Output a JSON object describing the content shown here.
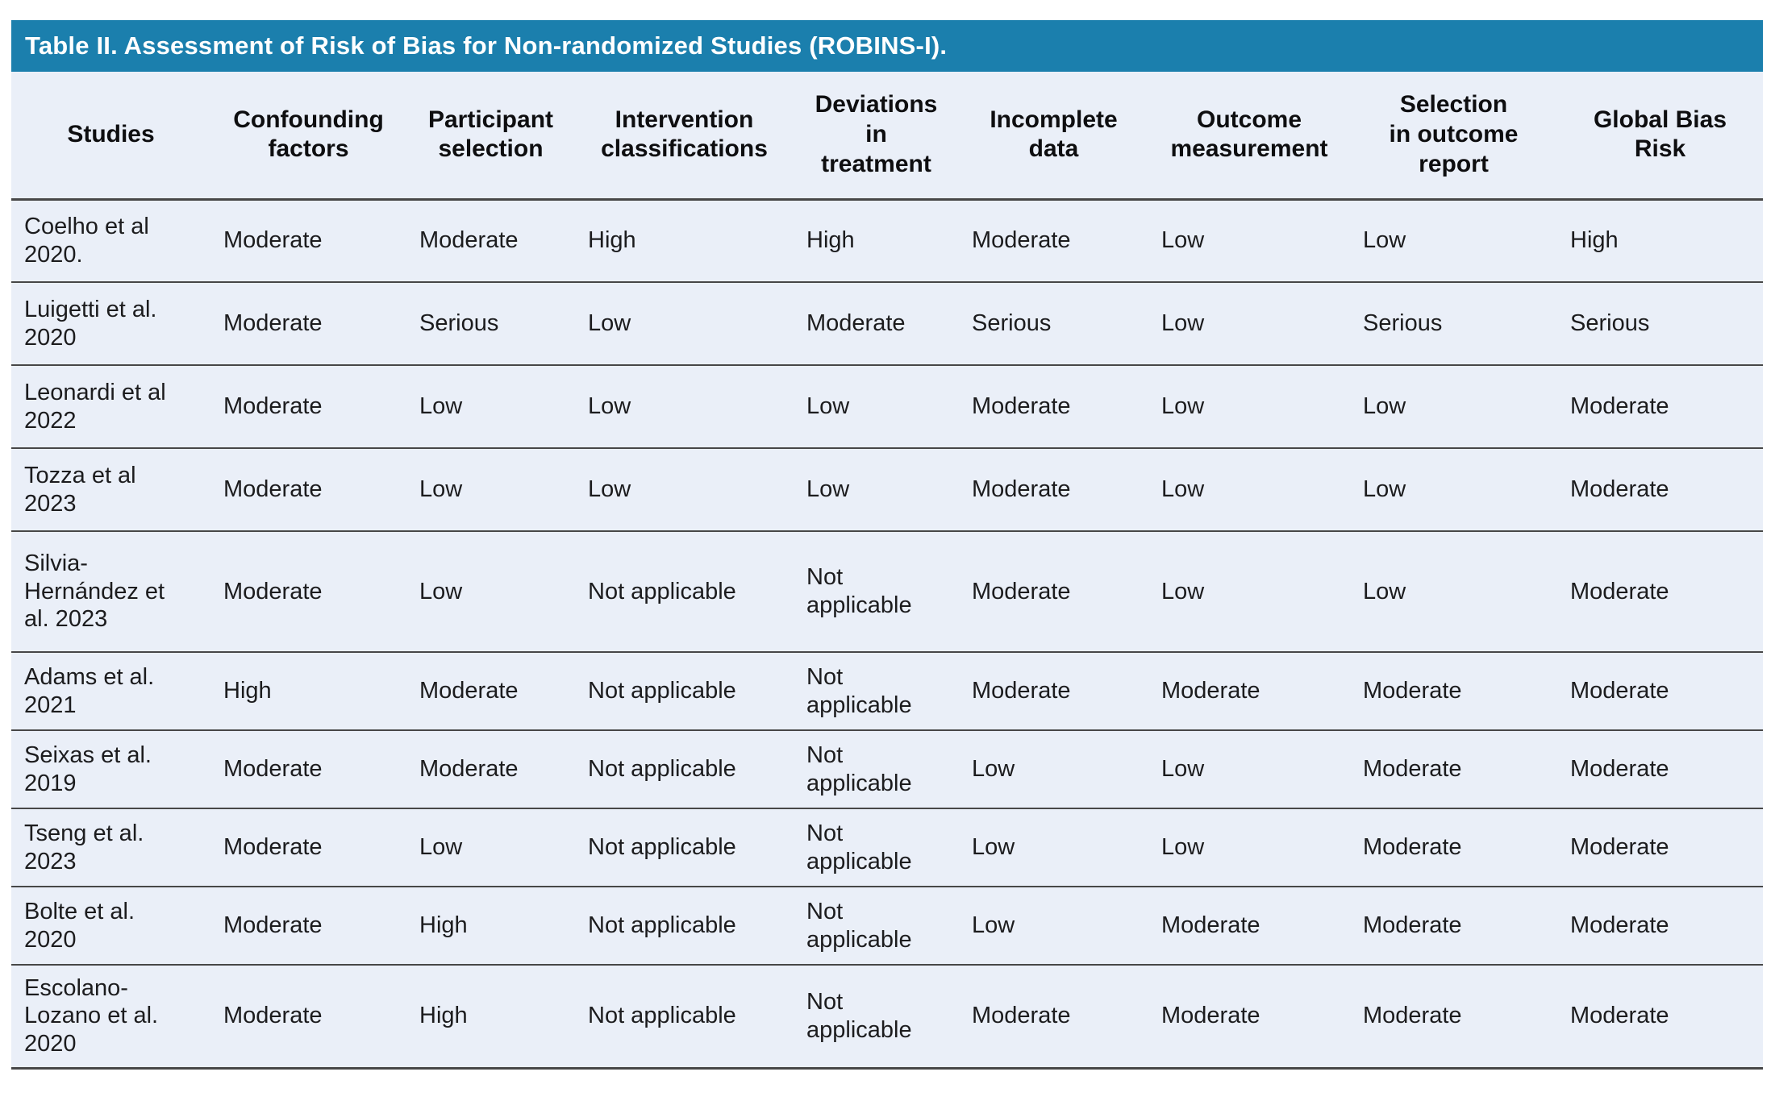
{
  "table": {
    "title": "Table II. Assessment of Risk of Bias for Non-randomized Studies (ROBINS-I).",
    "columns": [
      "Studies",
      "Confounding\nfactors",
      "Participant\nselection",
      "Intervention\nclassifications",
      "Deviations\nin\ntreatment",
      "Incomplete\ndata",
      "Outcome\nmeasurement",
      "Selection\nin outcome\nreport",
      "Global Bias\nRisk"
    ],
    "rows": [
      {
        "study": "Coelho et al 2020.",
        "values": [
          "Moderate",
          "Moderate",
          "High",
          "High",
          "Moderate",
          "Low",
          "Low",
          "High"
        ]
      },
      {
        "study": "Luigetti et al. 2020",
        "values": [
          "Moderate",
          "Serious",
          "Low",
          "Moderate",
          "Serious",
          "Low",
          "Serious",
          "Serious"
        ]
      },
      {
        "study": "Leonardi et al 2022",
        "values": [
          "Moderate",
          "Low",
          "Low",
          "Low",
          "Moderate",
          "Low",
          "Low",
          "Moderate"
        ]
      },
      {
        "study": "Tozza et al 2023",
        "values": [
          "Moderate",
          "Low",
          "Low",
          "Low",
          "Moderate",
          "Low",
          "Low",
          "Moderate"
        ]
      },
      {
        "study": "Silvia-Hernández et al. 2023",
        "values": [
          "Moderate",
          "Low",
          "Not applicable",
          "Not applicable",
          "Moderate",
          "Low",
          "Low",
          "Moderate"
        ]
      },
      {
        "study": "Adams et al. 2021",
        "values": [
          "High",
          "Moderate",
          "Not applicable",
          "Not applicable",
          "Moderate",
          "Moderate",
          "Moderate",
          "Moderate"
        ]
      },
      {
        "study": "Seixas et al. 2019",
        "values": [
          "Moderate",
          "Moderate",
          "Not applicable",
          "Not applicable",
          "Low",
          "Low",
          "Moderate",
          "Moderate"
        ]
      },
      {
        "study": "Tseng et al. 2023",
        "values": [
          "Moderate",
          "Low",
          "Not applicable",
          "Not applicable",
          "Low",
          "Low",
          "Moderate",
          "Moderate"
        ]
      },
      {
        "study": "Bolte et al. 2020",
        "values": [
          "Moderate",
          "High",
          "Not applicable",
          "Not applicable",
          "Low",
          "Moderate",
          "Moderate",
          "Moderate"
        ]
      },
      {
        "study": "Escolano-Lozano et al. 2020",
        "values": [
          "Moderate",
          "High",
          "Not applicable",
          "Not applicable",
          "Moderate",
          "Moderate",
          "Moderate",
          "Moderate"
        ]
      }
    ],
    "colors": {
      "title_bar_bg": "#1b7fad",
      "title_text": "#ffffff",
      "row_bg": "#eaeff8",
      "divider": "#474747",
      "body_text": "#1c1c1e"
    }
  }
}
